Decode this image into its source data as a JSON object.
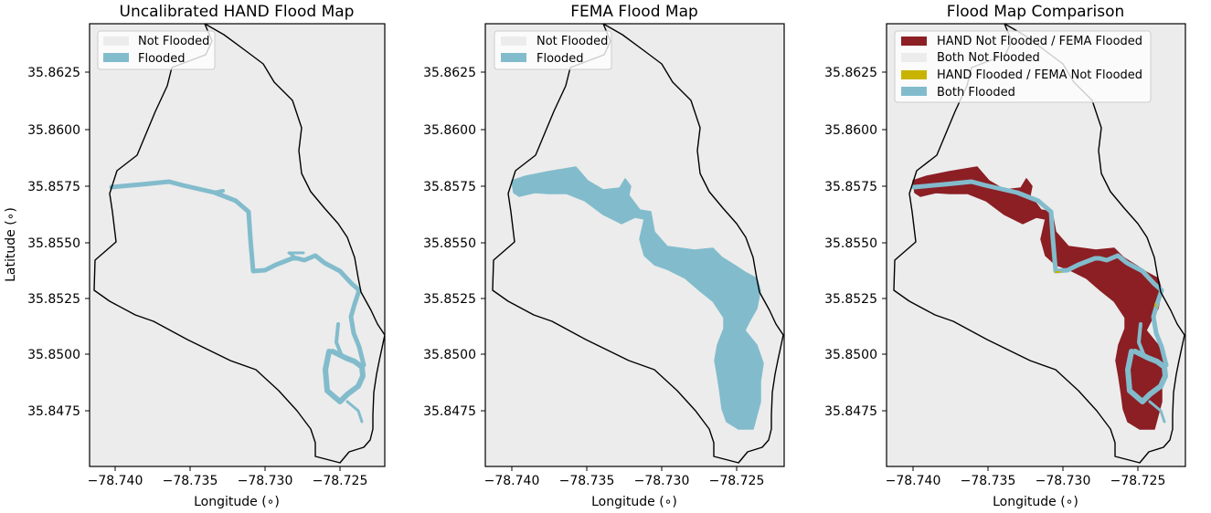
{
  "axes": {
    "xticks": [
      "−78.740",
      "−78.735",
      "−78.730",
      "−78.725"
    ],
    "yticks": [
      "35.8625",
      "35.8600",
      "35.8575",
      "35.8550",
      "35.8525",
      "35.8500",
      "35.8475"
    ],
    "xlabel": "Longitude (∘)",
    "ylabel": "Latitude (∘)"
  },
  "panels": [
    {
      "title": "Uncalibrated HAND Flood Map",
      "legend": [
        {
          "label": "Not Flooded",
          "color": "#ececec"
        },
        {
          "label": "Flooded",
          "color": "#82bccc"
        }
      ]
    },
    {
      "title": "FEMA Flood Map",
      "legend": [
        {
          "label": "Not Flooded",
          "color": "#ececec"
        },
        {
          "label": "Flooded",
          "color": "#82bccc"
        }
      ]
    },
    {
      "title": "Flood Map Comparison",
      "legend": [
        {
          "label": "HAND Not Flooded / FEMA Flooded",
          "color": "#8b1f24"
        },
        {
          "label": "Both Not Flooded",
          "color": "#ececec"
        },
        {
          "label": "HAND Flooded / FEMA Not Flooded",
          "color": "#c8b400"
        },
        {
          "label": "Both Flooded",
          "color": "#82bccc"
        }
      ]
    }
  ],
  "colors": {
    "background": "#ececec",
    "flooded": "#82bccc",
    "hand_not_fema": "#8b1f24",
    "hand_only": "#c8b400",
    "boundary": "#000000"
  }
}
